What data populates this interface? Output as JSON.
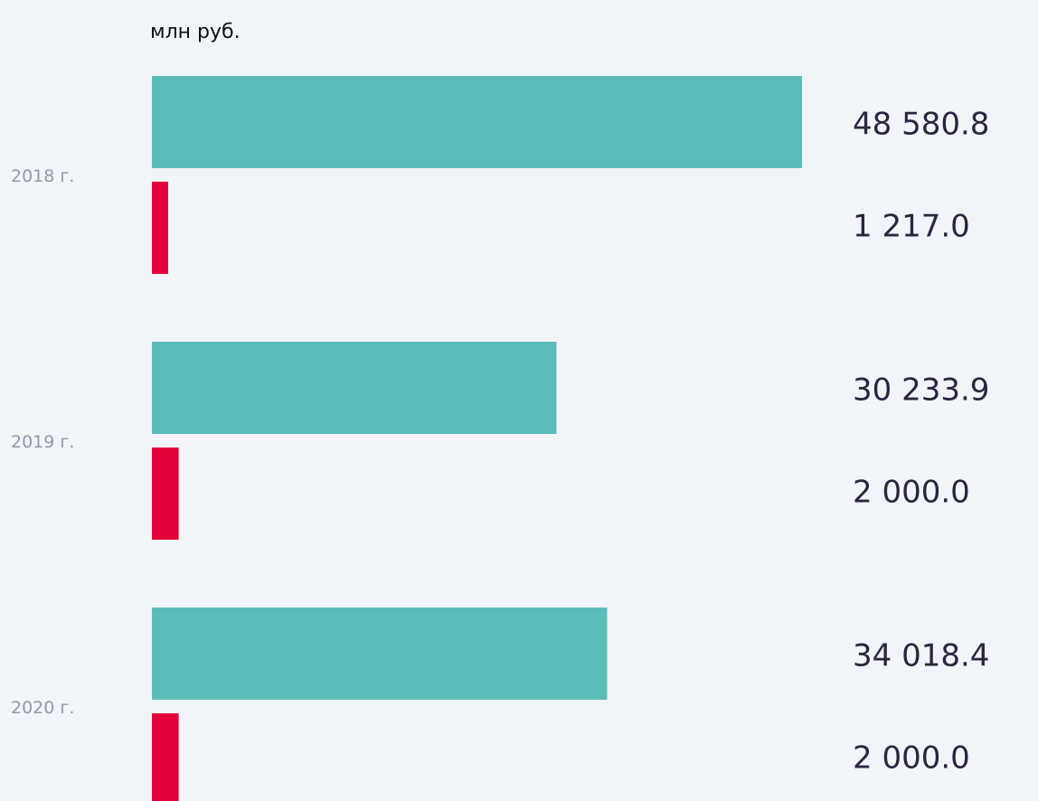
{
  "chart_data": {
    "type": "bar",
    "orientation": "horizontal",
    "subtitle": "млн руб.",
    "categories": [
      "2018 г.",
      "2019 г.",
      "2020 г."
    ],
    "series": [
      {
        "color": "#5bbdba",
        "values": [
          48580.8,
          30233.9,
          34018.4
        ],
        "value_labels": [
          "48 580.8",
          "30 233.9",
          "34 018.4"
        ]
      },
      {
        "color": "#e4003a",
        "values": [
          1217.0,
          2000.0,
          2000.0
        ],
        "value_labels": [
          "1 217.0",
          "2 000.0",
          "2 000.0"
        ]
      }
    ],
    "xlim": [
      0,
      50000
    ]
  }
}
